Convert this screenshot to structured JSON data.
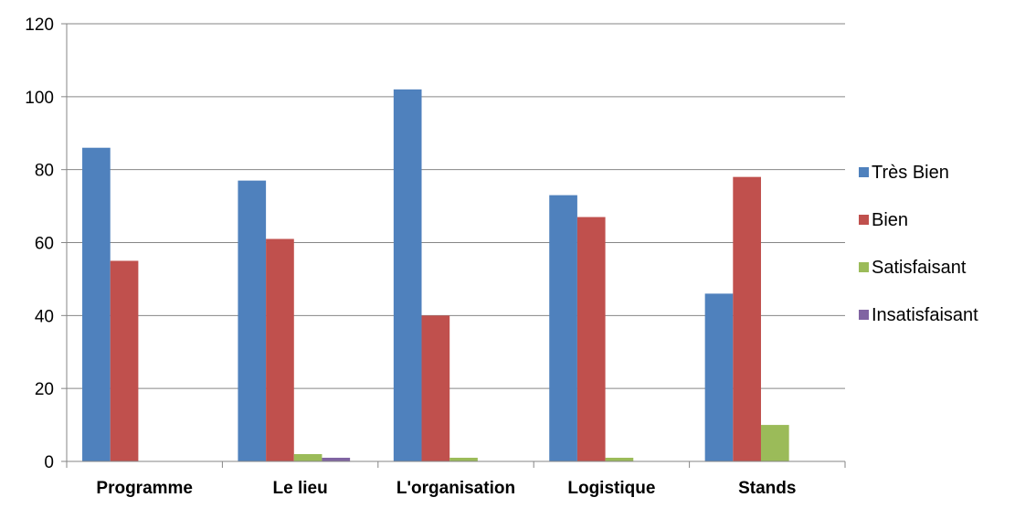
{
  "chart_data": {
    "type": "bar",
    "title": "",
    "xlabel": "",
    "ylabel": "",
    "categories": [
      "Programme",
      "Le lieu",
      "L'organisation",
      "Logistique",
      "Stands"
    ],
    "series": [
      {
        "name": "Très Bien",
        "color": "#4F81BD",
        "values": [
          86,
          77,
          102,
          73,
          46
        ]
      },
      {
        "name": "Bien",
        "color": "#C0504D",
        "values": [
          55,
          61,
          40,
          67,
          78
        ]
      },
      {
        "name": "Satisfaisant",
        "color": "#9BBB59",
        "values": [
          0,
          2,
          1,
          1,
          10
        ]
      },
      {
        "name": "Insatisfaisant",
        "color": "#8064A2",
        "values": [
          0,
          1,
          0,
          0,
          0
        ]
      }
    ],
    "ylim": [
      0,
      120
    ],
    "yticks": [
      0,
      20,
      40,
      60,
      80,
      100,
      120
    ],
    "grid": true,
    "legend_position": "right"
  }
}
